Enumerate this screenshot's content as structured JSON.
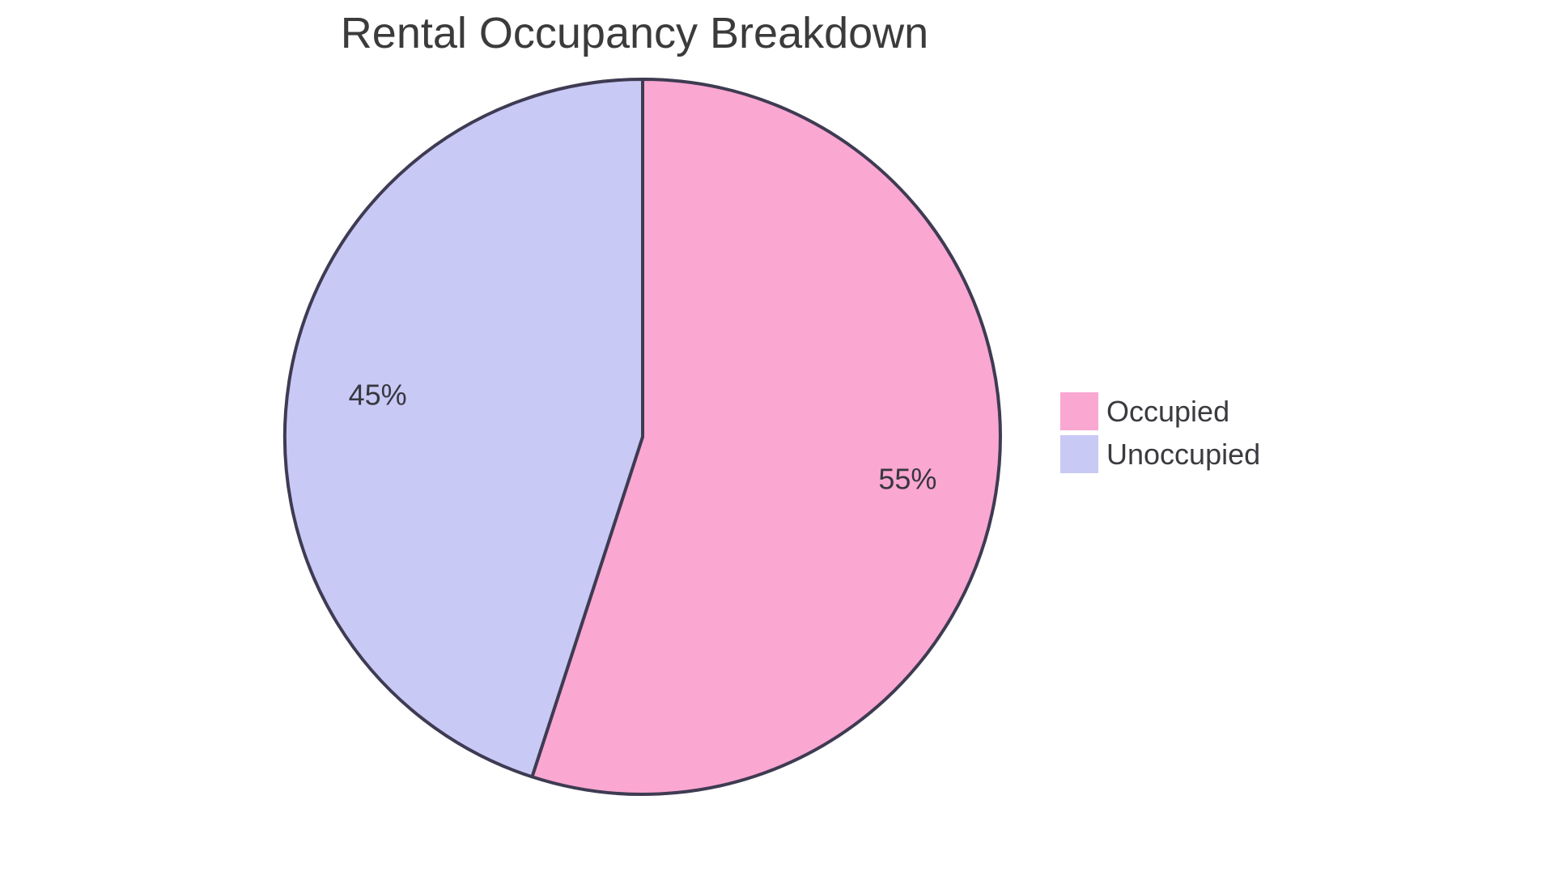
{
  "chart_data": {
    "type": "pie",
    "title": "Rental Occupancy Breakdown",
    "labels": [
      "Occupied",
      "Unoccupied"
    ],
    "values": [
      55,
      45
    ],
    "value_labels": [
      "55%",
      "45%"
    ],
    "colors": [
      "#FAA7D2",
      "#C9C9F6"
    ],
    "slice_border_color": "#3E3B52",
    "start_angle_deg": 0,
    "direction": "clockwise",
    "legend_position": "right",
    "background_color": "#FFFFFF",
    "title_color": "#3B3B3B",
    "label_color": "#37373F"
  }
}
